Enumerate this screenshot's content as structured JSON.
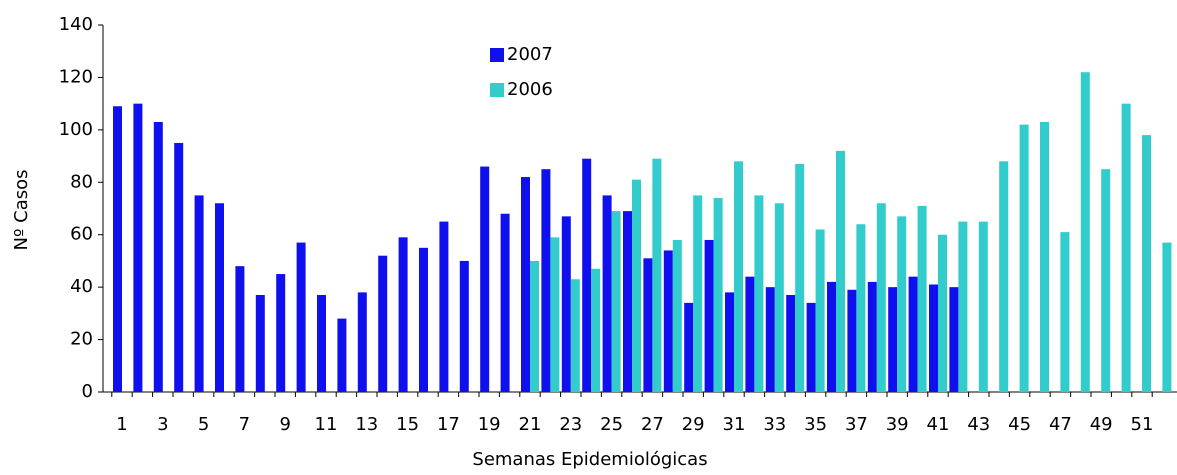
{
  "chart_data": {
    "type": "bar",
    "xlabel": "Semanas Epidemiológicas",
    "ylabel": "Nº Casos",
    "categories": [
      1,
      null,
      3,
      null,
      5,
      null,
      7,
      null,
      9,
      null,
      11,
      null,
      13,
      null,
      15,
      null,
      17,
      null,
      19,
      null,
      21,
      null,
      23,
      null,
      25,
      null,
      27,
      null,
      29,
      null,
      31,
      null,
      33,
      null,
      35,
      null,
      37,
      null,
      39,
      null,
      41,
      null,
      43,
      null,
      45,
      null,
      47,
      null,
      49,
      null,
      51,
      null
    ],
    "series": [
      {
        "name": "2007",
        "color": "#1010ee",
        "values": [
          109,
          110,
          103,
          95,
          75,
          72,
          48,
          37,
          45,
          57,
          37,
          28,
          38,
          52,
          59,
          55,
          65,
          50,
          86,
          68,
          82,
          85,
          67,
          89,
          75,
          69,
          51,
          54,
          34,
          58,
          38,
          44,
          40,
          37,
          34,
          42,
          39,
          42,
          40,
          44,
          41,
          40,
          null,
          null,
          null,
          null,
          null,
          null,
          null,
          null,
          null,
          null
        ]
      },
      {
        "name": "2006",
        "color": "#33cccc",
        "values": [
          null,
          null,
          null,
          null,
          null,
          null,
          null,
          null,
          null,
          null,
          null,
          null,
          null,
          null,
          null,
          null,
          null,
          null,
          null,
          null,
          50,
          59,
          43,
          47,
          69,
          81,
          89,
          58,
          75,
          74,
          88,
          75,
          72,
          87,
          62,
          92,
          64,
          72,
          67,
          71,
          60,
          65,
          65,
          88,
          102,
          103,
          61,
          122,
          85,
          110,
          98,
          57
        ]
      }
    ],
    "ylim": [
      0,
      140
    ],
    "yticks": [
      0,
      20,
      40,
      60,
      80,
      100,
      120,
      140
    ],
    "legend": "top"
  }
}
